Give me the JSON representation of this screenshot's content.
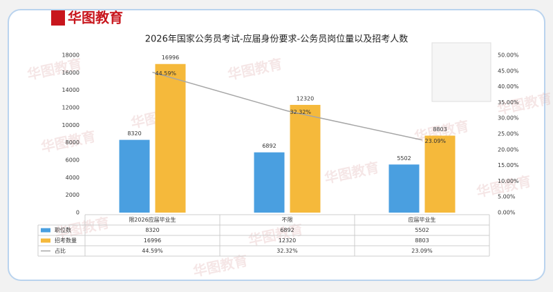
{
  "logo": "华图教育",
  "watermark": "华图教育",
  "chart_data": {
    "type": "bar_line",
    "title": "2026年国家公务员考试-应届身份要求-公务员岗位量以及招考人数",
    "categories": [
      "限2026应届毕业生",
      "不限",
      "应届毕业生"
    ],
    "series": [
      {
        "name": "职位数",
        "color": "#4a9fe0",
        "values": [
          8320,
          6892,
          5502
        ]
      },
      {
        "name": "招考数量",
        "color": "#f5b93b",
        "values": [
          16996,
          12320,
          8803
        ]
      },
      {
        "name": "占比",
        "color": "#a6a6a6",
        "type": "line",
        "axis": "y2",
        "values": [
          44.59,
          32.32,
          23.09
        ],
        "value_labels": [
          "44.59%",
          "32.32%",
          "23.09%"
        ]
      }
    ],
    "ylim": [
      0,
      18000
    ],
    "yticks": [
      0,
      2000,
      4000,
      6000,
      8000,
      10000,
      12000,
      14000,
      16000,
      18000
    ],
    "y2lim": [
      0,
      50
    ],
    "y2ticks": [
      {
        "value": 0,
        "label": "0.00%"
      },
      {
        "value": 5,
        "label": "5.00%"
      },
      {
        "value": 10,
        "label": "10.00%"
      },
      {
        "value": 15,
        "label": "15.00%"
      },
      {
        "value": 20,
        "label": "20.00%"
      },
      {
        "value": 25,
        "label": "25.00%"
      },
      {
        "value": 30,
        "label": "30.00%"
      },
      {
        "value": 35,
        "label": "35.00%"
      },
      {
        "value": 40,
        "label": "40.00%"
      },
      {
        "value": 45,
        "label": "45.00%"
      },
      {
        "value": 50,
        "label": "50.00%"
      }
    ],
    "grid": false
  }
}
